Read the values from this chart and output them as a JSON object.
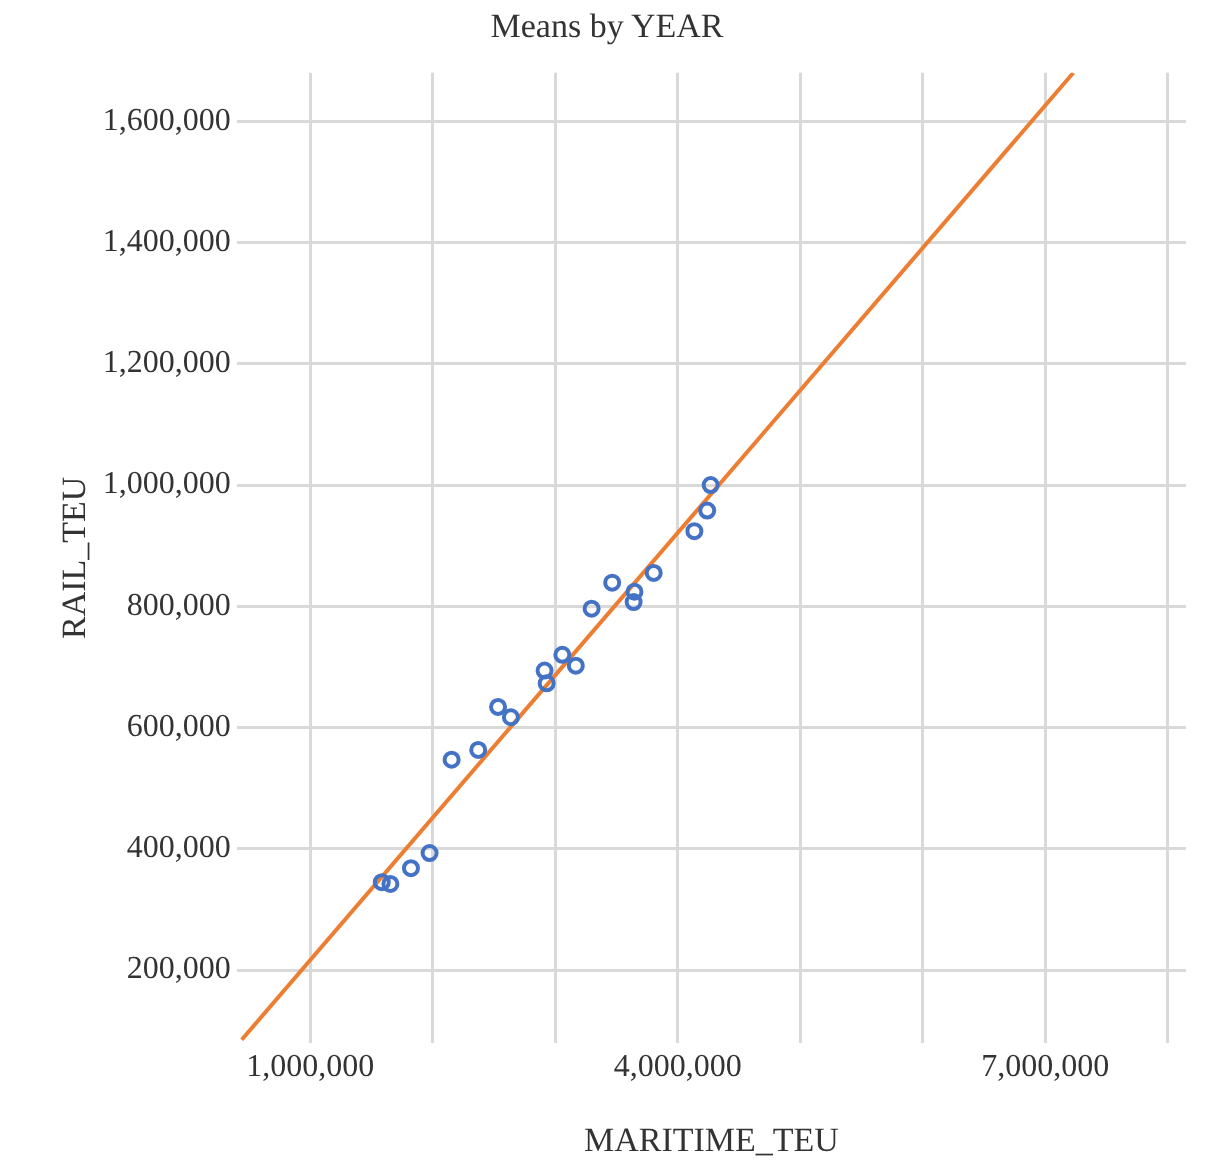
{
  "chart_data": {
    "type": "scatter",
    "title": "Means by YEAR",
    "xlabel": "MARITIME_TEU",
    "ylabel": "RAIL_TEU",
    "xlim": [
      400000,
      8150000
    ],
    "ylim": [
      80000,
      1680000
    ],
    "xticks": [
      {
        "value": 1000000,
        "label": "1,000,000"
      },
      {
        "value": 2000000,
        "label": null
      },
      {
        "value": 3000000,
        "label": null
      },
      {
        "value": 4000000,
        "label": "4,000,000"
      },
      {
        "value": 5000000,
        "label": null
      },
      {
        "value": 6000000,
        "label": null
      },
      {
        "value": 7000000,
        "label": "7,000,000"
      },
      {
        "value": 8000000,
        "label": null
      }
    ],
    "yticks": [
      {
        "value": 200000,
        "label": "200,000"
      },
      {
        "value": 400000,
        "label": "400,000"
      },
      {
        "value": 600000,
        "label": "600,000"
      },
      {
        "value": 800000,
        "label": "800,000"
      },
      {
        "value": 1000000,
        "label": "1,000,000"
      },
      {
        "value": 1200000,
        "label": "1,200,000"
      },
      {
        "value": 1400000,
        "label": "1,400,000"
      },
      {
        "value": 1600000,
        "label": "1,600,000"
      }
    ],
    "grid": true,
    "legend": false,
    "series": [
      {
        "marker": "circle",
        "color": "#4472c4",
        "x": [
          1584000,
          1654000,
          1822000,
          1974000,
          2154000,
          2371000,
          2533000,
          2638000,
          2913000,
          2930000,
          3058000,
          3168000,
          3297000,
          3465000,
          3647000,
          3640000,
          3804000,
          4136000,
          4241000,
          4269000
        ],
        "values": [
          345000,
          342000,
          368000,
          393000,
          547000,
          563000,
          634000,
          617000,
          694000,
          673000,
          720000,
          702000,
          796000,
          839000,
          824000,
          807000,
          855000,
          924000,
          958000,
          1000000
        ]
      },
      {
        "type": "line",
        "color": "#ed7d31",
        "x": [
          440000,
          7230000
        ],
        "values": [
          85000,
          1680000
        ]
      }
    ]
  }
}
